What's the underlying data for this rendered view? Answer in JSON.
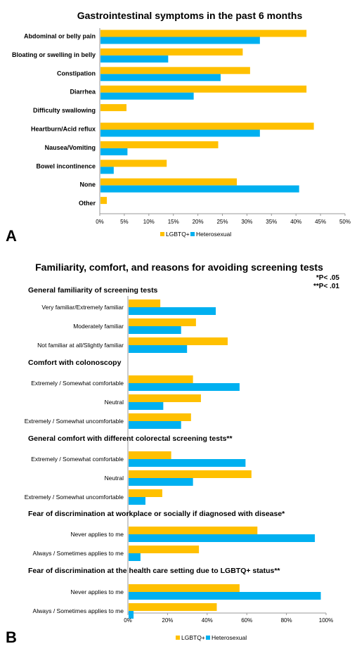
{
  "colors": {
    "lgbtq": "#FFC000",
    "hetero": "#00B0F0",
    "axis": "#999999"
  },
  "chart_data": [
    {
      "panel": "A",
      "type": "bar",
      "orientation": "horizontal",
      "title": "Gastrointestinal symptoms in the past 6 months",
      "categories": [
        "Abdominal or belly pain",
        "Bloating or swelling in belly",
        "Constipation",
        "Diarrhea",
        "Difficulty swallowing",
        "Heartburn/Acid reflux",
        "Nausea/Vomiting",
        "Bowel incontinence",
        "None",
        "Other"
      ],
      "series": [
        {
          "name": "LGBTQ+",
          "values": [
            42,
            29,
            30.5,
            42,
            5.3,
            43.5,
            24,
            13.5,
            27.8,
            1.3
          ]
        },
        {
          "name": "Heterosexual",
          "values": [
            32.5,
            13.8,
            24.5,
            19,
            0,
            32.5,
            5.5,
            2.7,
            40.5,
            0
          ]
        }
      ],
      "xlim": [
        0,
        50
      ],
      "x_ticks": [
        "0%",
        "5%",
        "10%",
        "15%",
        "20%",
        "25%",
        "30%",
        "35%",
        "40%",
        "45%",
        "50%"
      ],
      "legend": [
        "LGBTQ+",
        "Heterosexual"
      ],
      "legend_position": "bottom"
    },
    {
      "panel": "B",
      "type": "bar",
      "orientation": "horizontal",
      "title": "Familiarity, comfort, and reasons for avoiding screening tests",
      "notes": [
        "*P< .05",
        "**P< .01"
      ],
      "groups": [
        {
          "heading": "General familiarity of screening tests",
          "categories": [
            "Very familiar/Extremely familiar",
            "Moderately familiar",
            "Not familiar at all/Slightly familiar"
          ],
          "lgbtq": [
            16,
            34,
            50
          ],
          "hetero": [
            44,
            26.5,
            29.5
          ]
        },
        {
          "heading": "Comfort with colonoscopy",
          "categories": [
            "Extremely / Somewhat comfortable",
            "Neutral",
            "Extremely / Somewhat uncomfortable"
          ],
          "lgbtq": [
            32.5,
            36.5,
            31.5
          ],
          "hetero": [
            56,
            17.5,
            26.5
          ]
        },
        {
          "heading": "General comfort with different colorectal screening tests**",
          "categories": [
            "Extremely / Somewhat comfortable",
            "Neutral",
            "Extremely / Somewhat uncomfortable"
          ],
          "lgbtq": [
            21.5,
            62,
            17
          ],
          "hetero": [
            59,
            32.5,
            8.5
          ]
        },
        {
          "heading": "Fear of discrimination at workplace or socially if diagnosed with disease*",
          "categories": [
            "Never applies to me",
            "Always / Sometimes applies to me"
          ],
          "lgbtq": [
            65,
            35.5
          ],
          "hetero": [
            94,
            6
          ]
        },
        {
          "heading": "Fear of discrimination at the health care setting due to LGBTQ+ status**",
          "categories": [
            "Never applies to me",
            "Always / Sometimes applies to me"
          ],
          "lgbtq": [
            56,
            44.5
          ],
          "hetero": [
            97,
            2.5
          ]
        }
      ],
      "xlim": [
        0,
        100
      ],
      "x_ticks": [
        "0%",
        "20%",
        "40%",
        "60%",
        "80%",
        "100%"
      ],
      "legend": [
        "LGBTQ+",
        "Heterosexual"
      ],
      "legend_position": "bottom"
    }
  ]
}
